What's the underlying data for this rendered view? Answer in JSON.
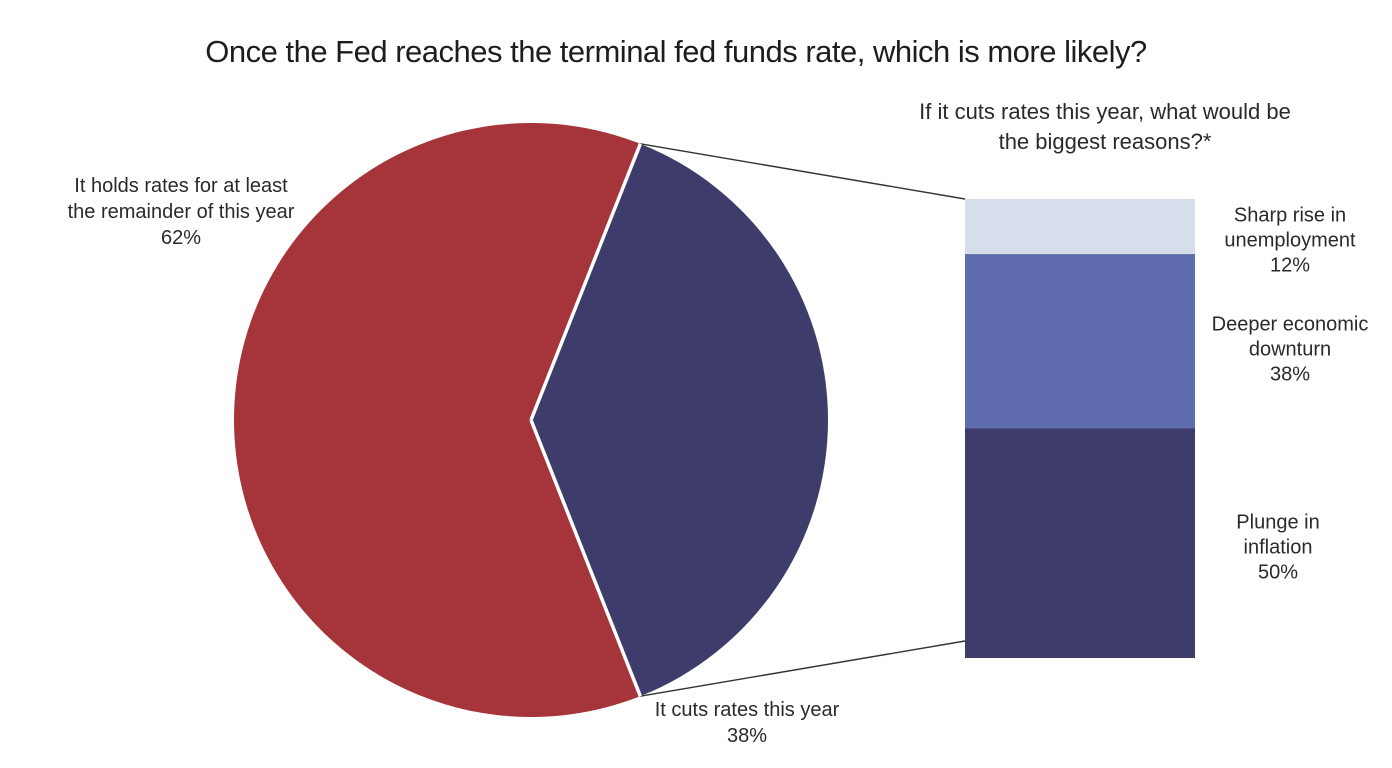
{
  "title": "Once the Fed reaches the terminal fed funds rate, which is more likely?",
  "colors": {
    "pie_holds_red": "#A5343B",
    "pie_cuts_navy": "#3E3C6B",
    "bar_unemployment_light": "#D5DEEA",
    "bar_downturn_mid": "#5F6DAF",
    "bar_inflation_dark": "#3E3C6B",
    "separator_white": "#FFFFFF",
    "connector_line": "#333333",
    "text": "#212121",
    "background": "#FFFFFF"
  },
  "labels": {
    "subtitle": "If it cuts rates this year, what would be\nthe biggest reasons?*",
    "pie_left": "It holds rates for at least\nthe remainder of this year\n62%",
    "pie_bottom": "It cuts rates this year\n38%",
    "bar_1": "Sharp rise in\nunemployment\n12%",
    "bar_2": "Deeper economic\ndownturn\n38%",
    "bar_3": "Plunge in\ninflation\n50%"
  },
  "chart_data": [
    {
      "type": "pie",
      "title": "Once the Fed reaches the terminal fed funds rate, which is more likely?",
      "slices": [
        {
          "label": "It holds rates for at least the remainder of this year",
          "value": 62,
          "pct_label": "62%",
          "color": "#A5343B"
        },
        {
          "label": "It cuts rates this year",
          "value": 38,
          "pct_label": "38%",
          "color": "#3E3C6B"
        }
      ],
      "layout_hints": {
        "style": "bar-of-pie",
        "cut_slice_points_right": true,
        "white_separators_between_slices": true,
        "connector_lines_to_stacked_bar": true
      }
    },
    {
      "type": "bar",
      "subtype": "single-stacked-column",
      "title": "If it cuts rates this year, what would be the biggest reasons?*",
      "categories": [
        "Sharp rise in unemployment",
        "Deeper economic downturn",
        "Plunge in inflation"
      ],
      "values": [
        12,
        38,
        50
      ],
      "value_labels": [
        "12%",
        "38%",
        "50%"
      ],
      "colors": [
        "#D5DEEA",
        "#5F6DAF",
        "#3E3C6B"
      ],
      "layout_hints": {
        "stack_order_top_to_bottom": [
          "Sharp rise in unemployment",
          "Deeper economic downturn",
          "Plunge in inflation"
        ],
        "labels_position": "right-of-bar",
        "axes": "none",
        "grid": false,
        "legend": "none"
      }
    }
  ]
}
